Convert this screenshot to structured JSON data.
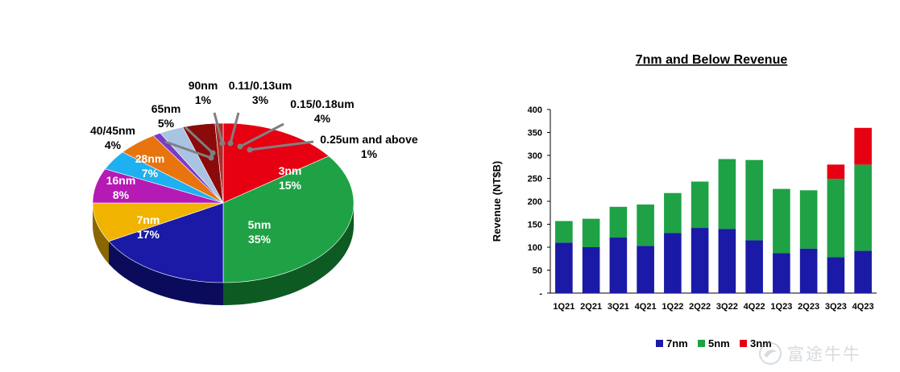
{
  "chart_data": [
    {
      "type": "pie",
      "title": "",
      "slices": [
        {
          "label": "3nm",
          "value": 15,
          "pct_label": "15%",
          "color": "#e60012",
          "side": "#8c000b"
        },
        {
          "label": "5nm",
          "value": 35,
          "pct_label": "35%",
          "color": "#1ea245",
          "side": "#0d5a22"
        },
        {
          "label": "7nm",
          "value": 17,
          "pct_label": "17%",
          "color": "#1a1aa6",
          "side": "#0b0b5c"
        },
        {
          "label": "16nm",
          "value": 8,
          "pct_label": "8%",
          "color": "#f0b400",
          "side": "#8a6600"
        },
        {
          "label": "28nm",
          "value": 7,
          "pct_label": "7%",
          "color": "#b51ab5",
          "side": "#5e0a5e"
        },
        {
          "label": "40/45nm",
          "value": 4,
          "pct_label": "4%",
          "color": "#1eb0f0",
          "side": "#0a6a94"
        },
        {
          "label": "65nm",
          "value": 5,
          "pct_label": "5%",
          "color": "#e8740e",
          "side": "#8a4005"
        },
        {
          "label": "90nm",
          "value": 1,
          "pct_label": "1%",
          "color": "#7a3cc8",
          "side": "#3e1a6a"
        },
        {
          "label": "0.11/0.13um",
          "value": 3,
          "pct_label": "3%",
          "color": "#a9c4e2",
          "side": "#5c7898"
        },
        {
          "label": "0.15/0.18um",
          "value": 4,
          "pct_label": "4%",
          "color": "#8b0a0a",
          "side": "#450404"
        },
        {
          "label": "0.25um and above",
          "value": 1,
          "pct_label": "1%",
          "color": "#b02a2a",
          "side": "#5a1010"
        }
      ]
    },
    {
      "type": "bar",
      "stacked": true,
      "title": "7nm and Below Revenue",
      "xlabel": "",
      "ylabel": "Revenue (NT$B)",
      "ylim": [
        0,
        400
      ],
      "yticks": [
        0,
        50,
        100,
        150,
        200,
        250,
        300,
        350,
        400
      ],
      "ytick_labels": [
        "-",
        "50",
        "100",
        "150",
        "200",
        "250",
        "300",
        "350",
        "400"
      ],
      "categories": [
        "1Q21",
        "2Q21",
        "3Q21",
        "4Q21",
        "1Q22",
        "2Q22",
        "3Q22",
        "4Q22",
        "1Q23",
        "2Q23",
        "3Q23",
        "4Q23"
      ],
      "series": [
        {
          "name": "7nm",
          "color": "#1a1aa6",
          "values": [
            110,
            100,
            121,
            103,
            131,
            142,
            140,
            115,
            87,
            97,
            78,
            92
          ]
        },
        {
          "name": "5nm",
          "color": "#1ea245",
          "values": [
            47,
            62,
            67,
            90,
            87,
            101,
            152,
            175,
            140,
            127,
            171,
            188
          ]
        },
        {
          "name": "3nm",
          "color": "#e60012",
          "values": [
            0,
            0,
            0,
            0,
            0,
            0,
            0,
            0,
            0,
            0,
            31,
            80
          ]
        }
      ],
      "legend_position": "bottom"
    }
  ],
  "watermark": {
    "text": "富途牛牛",
    "icon": "futu-logo-icon"
  }
}
